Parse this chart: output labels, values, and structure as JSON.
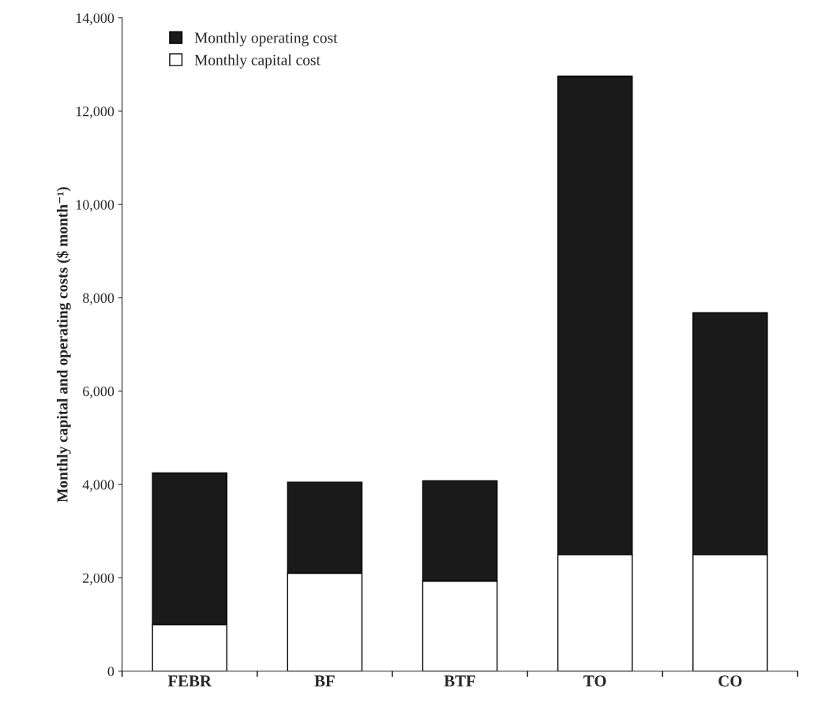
{
  "chart_data": {
    "type": "bar",
    "stacked": true,
    "ylabel": "Monthly capital and operating costs ($ month⁻¹)",
    "categories": [
      "FEBR",
      "BF",
      "BTF",
      "TO",
      "CO"
    ],
    "series": [
      {
        "name": "Monthly capital cost",
        "color": "#ffffff",
        "values": [
          1000,
          2100,
          1930,
          2500,
          2500
        ]
      },
      {
        "name": "Monthly operating cost",
        "color": "#1a1a1a",
        "values": [
          3250,
          1950,
          2150,
          10250,
          5180
        ]
      }
    ],
    "ylim": [
      0,
      14000
    ],
    "yticks": [
      {
        "value": 0,
        "label": "0"
      },
      {
        "value": 2000,
        "label": "2,000"
      },
      {
        "value": 4000,
        "label": "4,000"
      },
      {
        "value": 6000,
        "label": "6,000"
      },
      {
        "value": 8000,
        "label": "8,000"
      },
      {
        "value": 10000,
        "label": "10,000"
      },
      {
        "value": 12000,
        "label": "12,000"
      },
      {
        "value": 14000,
        "label": "14,000"
      }
    ],
    "legend": "top left"
  }
}
